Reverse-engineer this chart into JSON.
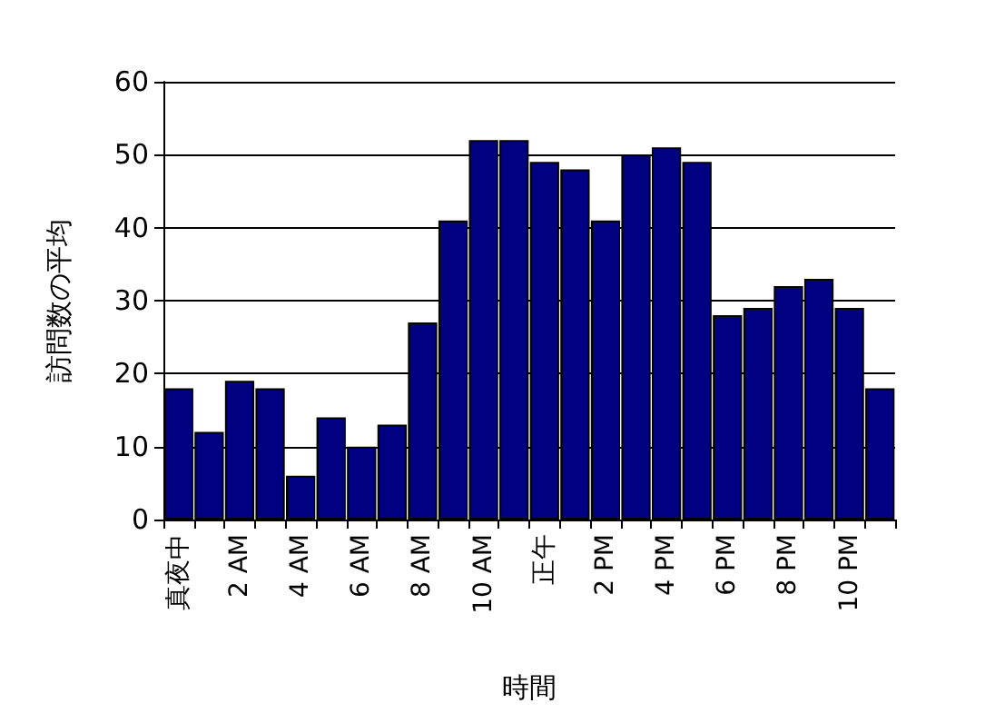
{
  "chart_data": {
    "type": "bar",
    "xlabel": "時間",
    "ylabel": "訪問数の平均",
    "categories": [
      "真夜中",
      null,
      "2 AM",
      null,
      "4 AM",
      null,
      "6 AM",
      null,
      "8 AM",
      null,
      "10 AM",
      null,
      "正午",
      null,
      "2 PM",
      null,
      "4 PM",
      null,
      "6 PM",
      null,
      "8 PM",
      null,
      "10 PM",
      null
    ],
    "values": [
      18,
      12,
      19,
      18,
      6,
      14,
      10,
      13,
      27,
      41,
      52,
      52,
      49,
      48,
      41,
      50,
      51,
      49,
      28,
      29,
      32,
      33,
      29,
      18
    ],
    "color": "#000080",
    "ylim": [
      0,
      60
    ],
    "yticks": [
      0,
      10,
      20,
      30,
      40,
      50,
      60
    ],
    "grid": "y"
  }
}
